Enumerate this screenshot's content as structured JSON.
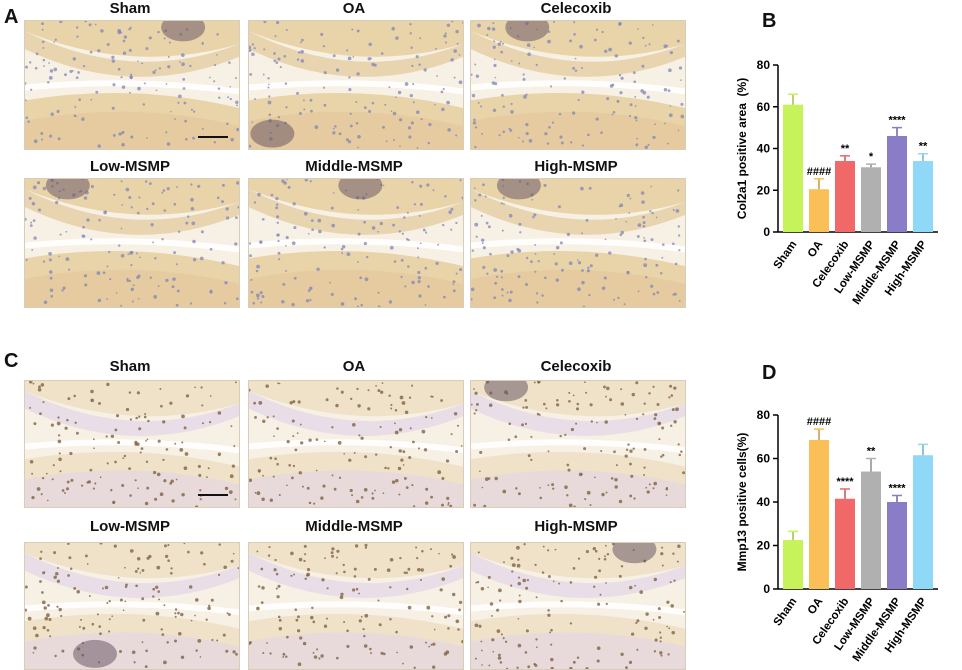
{
  "panels": {
    "A": {
      "letter": "A",
      "titles": [
        "Sham",
        "OA",
        "Celecoxib",
        "Low-MSMP",
        "Middle-MSMP",
        "High-MSMP"
      ]
    },
    "C": {
      "letter": "C",
      "titles": [
        "Sham",
        "OA",
        "Celecoxib",
        "Low-MSMP",
        "Middle-MSMP",
        "High-MSMP"
      ]
    },
    "B": {
      "letter": "B"
    },
    "D": {
      "letter": "D"
    }
  },
  "colors": {
    "sham": "#c6f25a",
    "oa": "#fbbf58",
    "celecoxib": "#f06868",
    "low": "#b0b0b0",
    "middle": "#8a7cc7",
    "high": "#8fd8f7"
  },
  "chart_data": [
    {
      "panel": "B",
      "type": "bar",
      "categories": [
        "Sham",
        "OA",
        "Celecoxib",
        "Low-MSMP",
        "Middle-MSMP",
        "High-MSMP"
      ],
      "values": [
        61,
        20.5,
        34,
        31,
        46,
        34
      ],
      "errors": [
        5,
        5,
        2.5,
        1.5,
        4,
        3.5
      ],
      "annotations": [
        "",
        "####",
        "**",
        "*",
        "****",
        "**"
      ],
      "ylabel": "Col2a1 positive area  (%)",
      "xlabel": "",
      "ylim": [
        0,
        80
      ],
      "yticks": [
        "0",
        "20",
        "40",
        "60",
        "80"
      ]
    },
    {
      "panel": "D",
      "type": "bar",
      "categories": [
        "Sham",
        "OA",
        "Celecoxib",
        "Low-MSMP",
        "Middle-MSMP",
        "High-MSMP"
      ],
      "values": [
        22.5,
        68.5,
        41.5,
        54,
        40,
        61.5
      ],
      "errors": [
        4,
        5,
        4.5,
        6,
        3,
        5
      ],
      "annotations": [
        "",
        "####",
        "****",
        "**",
        "****",
        ""
      ],
      "ylabel": "Mmp13 positive cells(%)",
      "xlabel": "",
      "ylim": [
        0,
        80
      ],
      "yticks": [
        "0",
        "20",
        "40",
        "60",
        "80"
      ]
    }
  ]
}
